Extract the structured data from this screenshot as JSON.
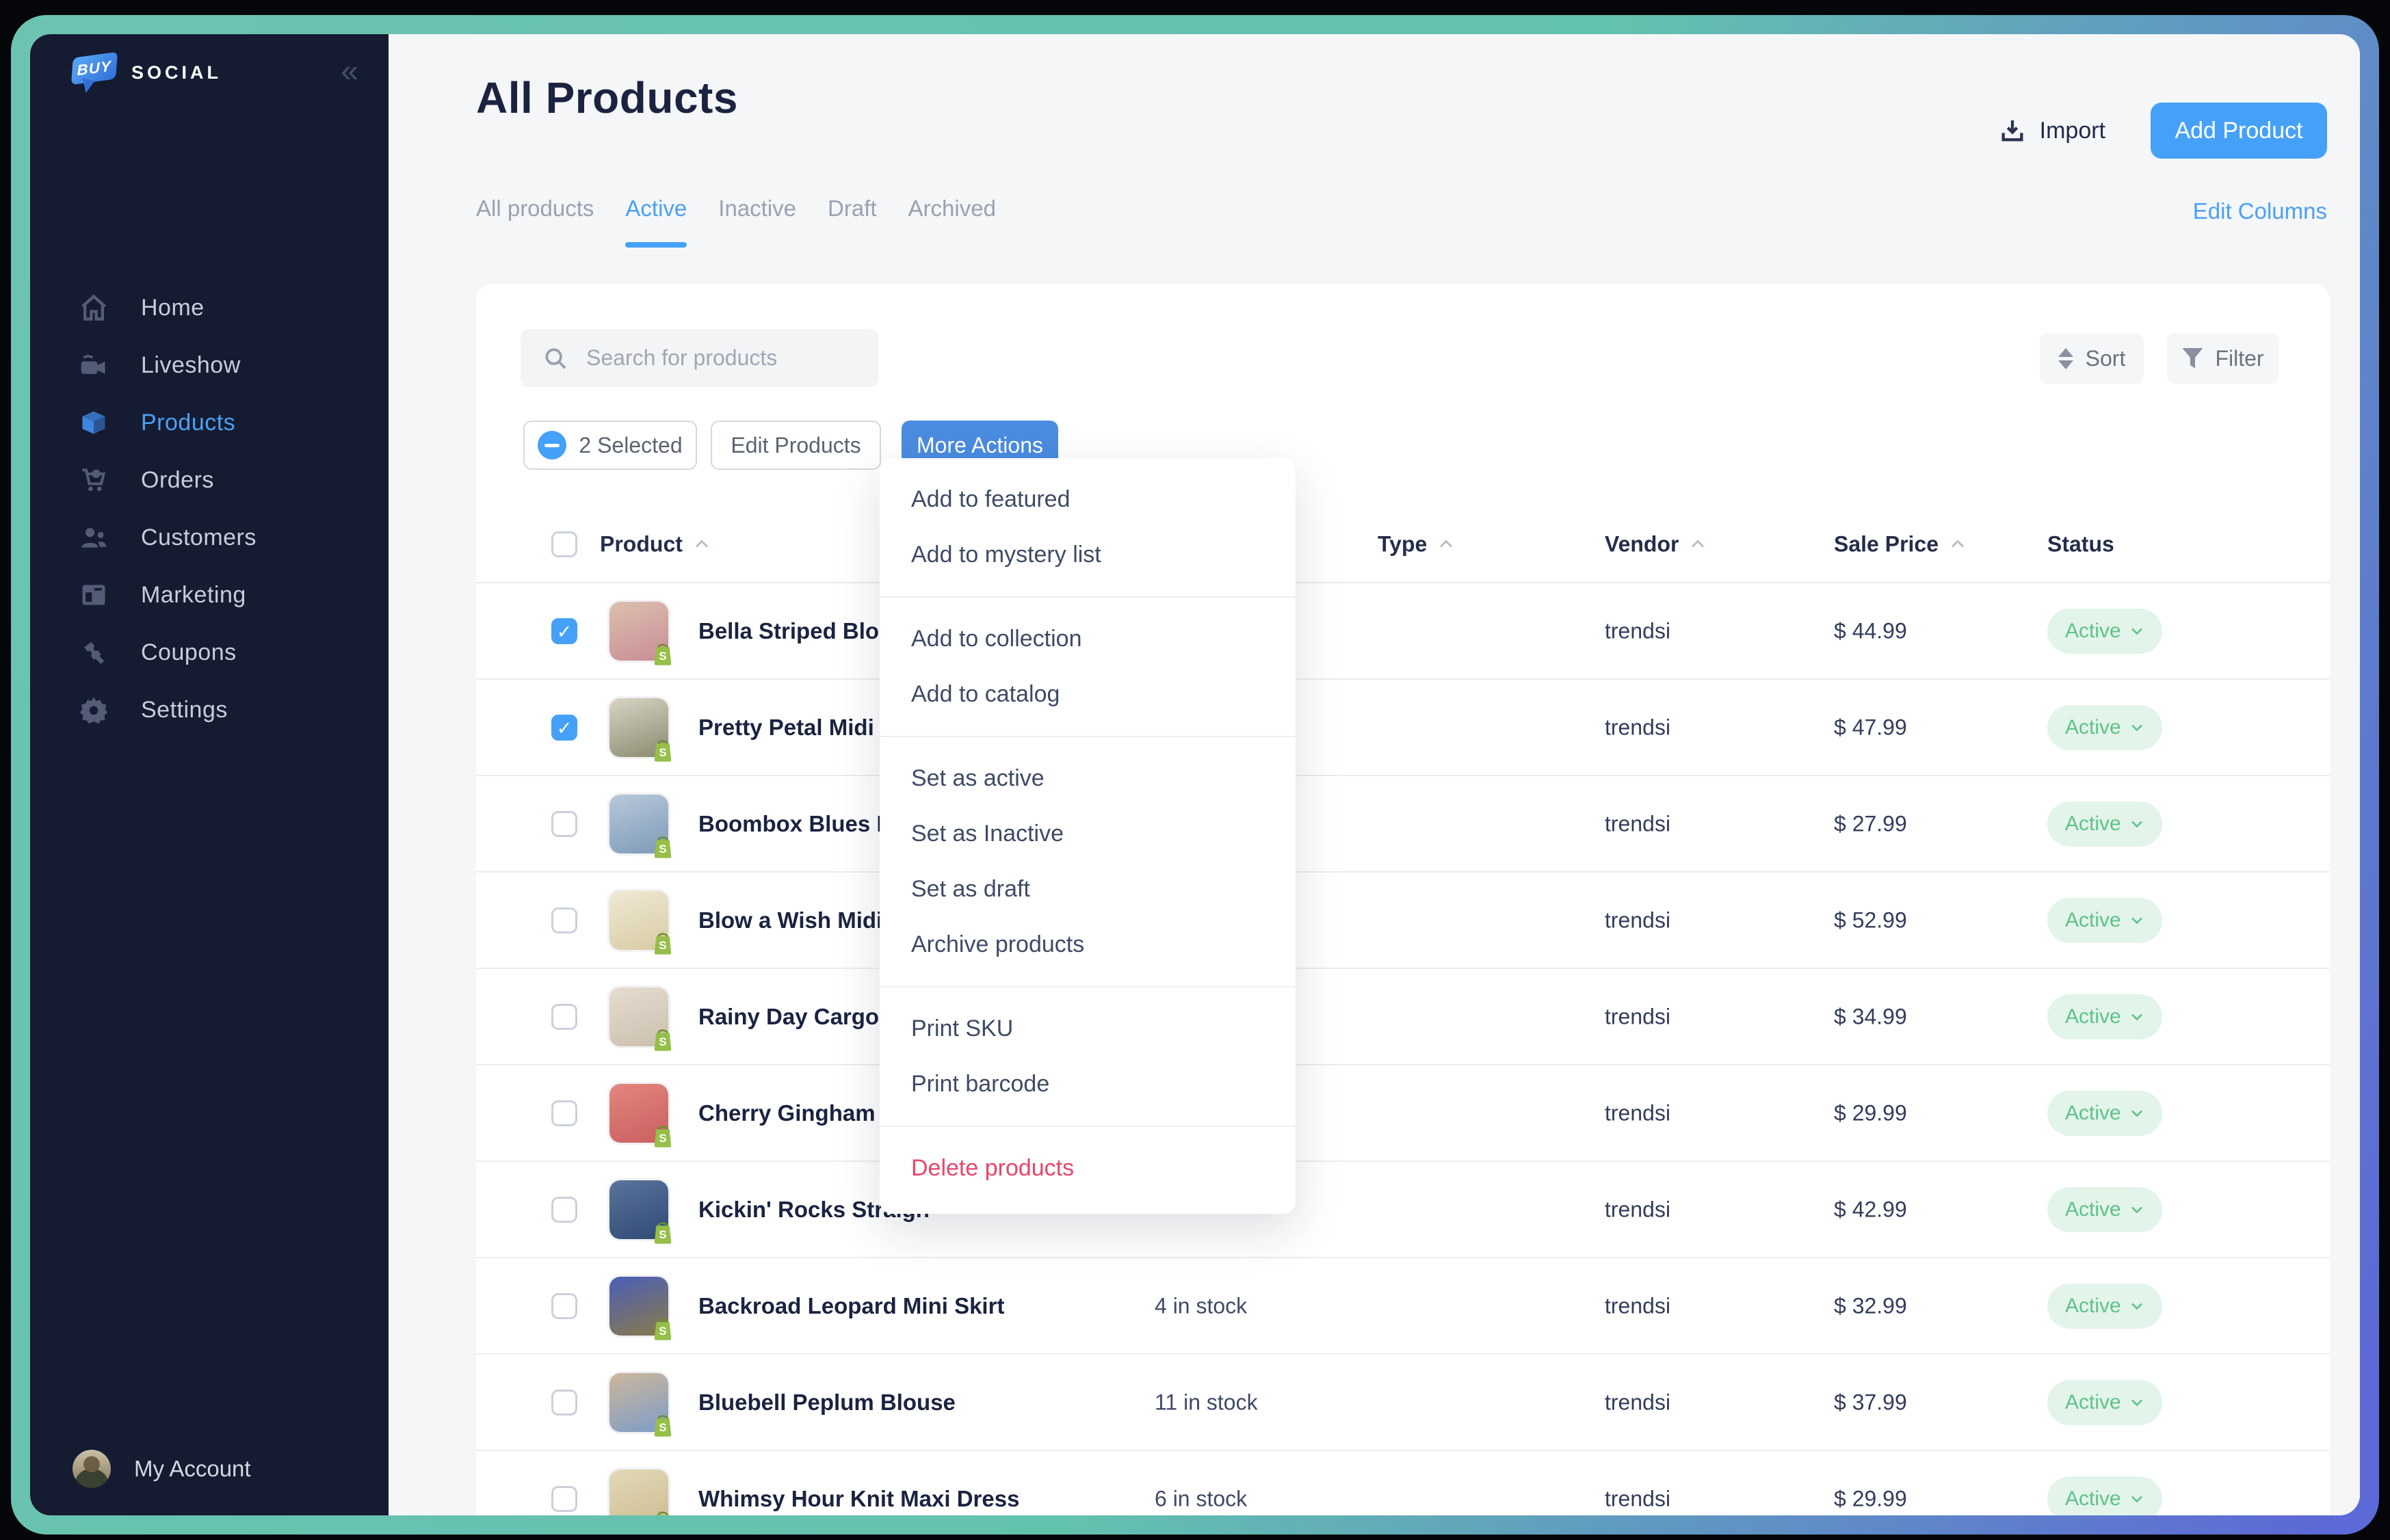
{
  "colors": {
    "accent_blue": "#45a1f8",
    "more_actions_blue": "#4a8ce0",
    "sidebar_bg": "#151b31",
    "status_green_text": "#5ec289",
    "status_green_bg": "#e3f4ea",
    "danger_pink": "#e8456a",
    "frame_teal": "#67c2b0",
    "frame_indigo": "#5d69d6"
  },
  "brand": {
    "logo_badge": "BUY",
    "name": "SOCIAL",
    "collapse_glyph": "«"
  },
  "sidebar": {
    "items": [
      {
        "label": "Home",
        "icon": "home-icon",
        "active": false
      },
      {
        "label": "Liveshow",
        "icon": "video-camera-icon",
        "active": false
      },
      {
        "label": "Products",
        "icon": "box-icon",
        "active": true
      },
      {
        "label": "Orders",
        "icon": "cart-icon",
        "active": false
      },
      {
        "label": "Customers",
        "icon": "people-icon",
        "active": false
      },
      {
        "label": "Marketing",
        "icon": "layout-icon",
        "active": false
      },
      {
        "label": "Coupons",
        "icon": "ticket-icon",
        "active": false
      },
      {
        "label": "Settings",
        "icon": "gear-icon",
        "active": false
      }
    ],
    "account_label": "My Account"
  },
  "header": {
    "title": "All Products",
    "import_label": "Import",
    "add_product_label": "Add Product"
  },
  "tabs": {
    "items": [
      "All products",
      "Active",
      "Inactive",
      "Draft",
      "Archived"
    ],
    "active_index": 1,
    "edit_columns_label": "Edit Columns"
  },
  "toolbar": {
    "search_placeholder": "Search for products",
    "sort_label": "Sort",
    "filter_label": "Filter",
    "selected_label": "2 Selected",
    "edit_products_label": "Edit Products",
    "more_actions_label": "More Actions"
  },
  "menu": {
    "groups": [
      [
        {
          "label": "Add to featured"
        },
        {
          "label": "Add to mystery list"
        }
      ],
      [
        {
          "label": "Add to collection"
        },
        {
          "label": "Add to catalog"
        }
      ],
      [
        {
          "label": "Set as active"
        },
        {
          "label": "Set as Inactive"
        },
        {
          "label": "Set as draft"
        },
        {
          "label": "Archive products"
        }
      ],
      [
        {
          "label": "Print SKU"
        },
        {
          "label": "Print barcode"
        }
      ],
      [
        {
          "label": "Delete products",
          "danger": true
        }
      ]
    ]
  },
  "table": {
    "columns": [
      {
        "label": "Product",
        "sortable": true
      },
      {
        "label": "Type",
        "sortable": true
      },
      {
        "label": "Vendor",
        "sortable": true
      },
      {
        "label": "Sale Price",
        "sortable": true
      },
      {
        "label": "Status",
        "sortable": false
      }
    ],
    "rows": [
      {
        "name": "Bella Striped Blouse",
        "stock": "",
        "type": "",
        "vendor": "trendsi",
        "price": "$ 44.99",
        "status": "Active",
        "checked": true,
        "img": [
          "#dcc0ae",
          "#c98d96"
        ]
      },
      {
        "name": "Pretty Petal Midi Dre",
        "stock": "",
        "type": "",
        "vendor": "trendsi",
        "price": "$ 47.99",
        "status": "Active",
        "checked": true,
        "img": [
          "#d9d4c6",
          "#8a8a6f"
        ]
      },
      {
        "name": "Boombox Blues Den",
        "stock": "",
        "type": "",
        "vendor": "trendsi",
        "price": "$ 27.99",
        "status": "Active",
        "checked": false,
        "img": [
          "#b9c9da",
          "#7d99b8"
        ]
      },
      {
        "name": "Blow a Wish Midi Dre",
        "stock": "",
        "type": "",
        "vendor": "trendsi",
        "price": "$ 52.99",
        "status": "Active",
        "checked": false,
        "img": [
          "#efe9d4",
          "#d8cba4"
        ]
      },
      {
        "name": "Rainy Day Cargo Dre",
        "stock": "",
        "type": "",
        "vendor": "trendsi",
        "price": "$ 34.99",
        "status": "Active",
        "checked": false,
        "img": [
          "#e6ddd0",
          "#cbbfae"
        ]
      },
      {
        "name": "Cherry Gingham Ba",
        "stock": "",
        "type": "",
        "vendor": "trendsi",
        "price": "$ 29.99",
        "status": "Active",
        "checked": false,
        "img": [
          "#e2867e",
          "#c95f5f"
        ]
      },
      {
        "name": "Kickin' Rocks Straigh",
        "stock": "",
        "type": "",
        "vendor": "trendsi",
        "price": "$ 42.99",
        "status": "Active",
        "checked": false,
        "img": [
          "#5a749c",
          "#2f4a74"
        ]
      },
      {
        "name": "Backroad Leopard Mini Skirt",
        "stock": "4 in stock",
        "type": "",
        "vendor": "trendsi",
        "price": "$ 32.99",
        "status": "Active",
        "checked": false,
        "img": [
          "#4a5fb8",
          "#8a7a4a"
        ]
      },
      {
        "name": "Bluebell Peplum Blouse",
        "stock": "11 in stock",
        "type": "",
        "vendor": "trendsi",
        "price": "$ 37.99",
        "status": "Active",
        "checked": false,
        "img": [
          "#cdb79a",
          "#7d9cc9"
        ]
      },
      {
        "name": "Whimsy Hour Knit Maxi Dress",
        "stock": "6 in stock",
        "type": "",
        "vendor": "trendsi",
        "price": "$ 29.99",
        "status": "Active",
        "checked": false,
        "img": [
          "#e3d8b8",
          "#cbbd92"
        ]
      }
    ]
  }
}
